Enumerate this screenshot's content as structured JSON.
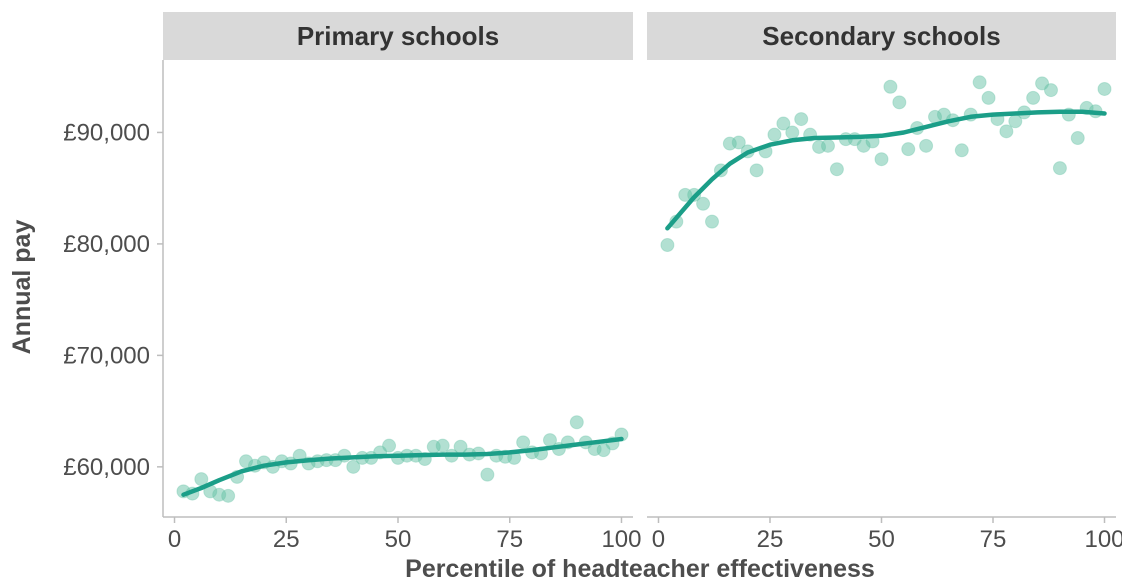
{
  "chart_data": {
    "type": "scatter",
    "xlabel": "Percentile of headteacher effectiveness",
    "ylabel": "Annual pay",
    "xlim": [
      0,
      100
    ],
    "ylim": [
      55500,
      96500
    ],
    "x_ticks": [
      0,
      25,
      50,
      75,
      100
    ],
    "x_tick_labels": [
      "0",
      "25",
      "50",
      "75",
      "100"
    ],
    "y_ticks": [
      60000,
      70000,
      80000,
      90000
    ],
    "y_tick_labels": [
      "£60,000",
      "£70,000",
      "£80,000",
      "£90,000"
    ],
    "grid": false,
    "colors": {
      "points": "#66c2a5",
      "smooth_line": "#1b9e88",
      "strip_bg": "#d9d9d9",
      "axis": "#bdbdbd"
    },
    "panels": [
      {
        "name": "Primary schools",
        "points": [
          [
            2,
            57800
          ],
          [
            4,
            57600
          ],
          [
            6,
            58900
          ],
          [
            8,
            57800
          ],
          [
            10,
            57500
          ],
          [
            12,
            57400
          ],
          [
            14,
            59100
          ],
          [
            16,
            60500
          ],
          [
            18,
            60100
          ],
          [
            20,
            60400
          ],
          [
            22,
            60000
          ],
          [
            24,
            60500
          ],
          [
            26,
            60300
          ],
          [
            28,
            61000
          ],
          [
            30,
            60300
          ],
          [
            32,
            60500
          ],
          [
            34,
            60600
          ],
          [
            36,
            60600
          ],
          [
            38,
            61000
          ],
          [
            40,
            60000
          ],
          [
            42,
            60800
          ],
          [
            44,
            60800
          ],
          [
            46,
            61300
          ],
          [
            48,
            61900
          ],
          [
            50,
            60800
          ],
          [
            52,
            61000
          ],
          [
            54,
            61000
          ],
          [
            56,
            60700
          ],
          [
            58,
            61800
          ],
          [
            60,
            61900
          ],
          [
            62,
            61000
          ],
          [
            64,
            61800
          ],
          [
            66,
            61100
          ],
          [
            68,
            61200
          ],
          [
            70,
            59300
          ],
          [
            72,
            61000
          ],
          [
            74,
            60900
          ],
          [
            76,
            60800
          ],
          [
            78,
            62200
          ],
          [
            80,
            61300
          ],
          [
            82,
            61200
          ],
          [
            84,
            62400
          ],
          [
            86,
            61600
          ],
          [
            88,
            62200
          ],
          [
            90,
            64000
          ],
          [
            92,
            62200
          ],
          [
            94,
            61600
          ],
          [
            96,
            61500
          ],
          [
            98,
            62100
          ],
          [
            100,
            62900
          ]
        ],
        "smooth": [
          [
            2,
            57500
          ],
          [
            6,
            58100
          ],
          [
            10,
            58800
          ],
          [
            15,
            59600
          ],
          [
            20,
            60100
          ],
          [
            25,
            60400
          ],
          [
            30,
            60600
          ],
          [
            35,
            60750
          ],
          [
            40,
            60850
          ],
          [
            45,
            60950
          ],
          [
            50,
            61000
          ],
          [
            55,
            61050
          ],
          [
            60,
            61100
          ],
          [
            65,
            61100
          ],
          [
            70,
            61150
          ],
          [
            75,
            61300
          ],
          [
            80,
            61500
          ],
          [
            85,
            61750
          ],
          [
            90,
            62000
          ],
          [
            95,
            62250
          ],
          [
            100,
            62500
          ]
        ]
      },
      {
        "name": "Secondary schools",
        "points": [
          [
            2,
            79900
          ],
          [
            4,
            82000
          ],
          [
            6,
            84400
          ],
          [
            8,
            84400
          ],
          [
            10,
            83600
          ],
          [
            12,
            82000
          ],
          [
            14,
            86600
          ],
          [
            16,
            89000
          ],
          [
            18,
            89100
          ],
          [
            20,
            88300
          ],
          [
            22,
            86600
          ],
          [
            24,
            88300
          ],
          [
            26,
            89800
          ],
          [
            28,
            90800
          ],
          [
            30,
            90000
          ],
          [
            32,
            91200
          ],
          [
            34,
            89800
          ],
          [
            36,
            88700
          ],
          [
            38,
            88800
          ],
          [
            40,
            86700
          ],
          [
            42,
            89400
          ],
          [
            44,
            89400
          ],
          [
            46,
            88800
          ],
          [
            48,
            89200
          ],
          [
            50,
            87600
          ],
          [
            52,
            94100
          ],
          [
            54,
            92700
          ],
          [
            56,
            88500
          ],
          [
            58,
            90400
          ],
          [
            60,
            88800
          ],
          [
            62,
            91400
          ],
          [
            64,
            91600
          ],
          [
            66,
            91100
          ],
          [
            68,
            88400
          ],
          [
            70,
            91600
          ],
          [
            72,
            94500
          ],
          [
            74,
            93100
          ],
          [
            76,
            91200
          ],
          [
            78,
            90100
          ],
          [
            80,
            91000
          ],
          [
            82,
            91800
          ],
          [
            84,
            93100
          ],
          [
            86,
            94400
          ],
          [
            88,
            93800
          ],
          [
            90,
            86800
          ],
          [
            92,
            91600
          ],
          [
            94,
            89500
          ],
          [
            96,
            92200
          ],
          [
            98,
            91900
          ],
          [
            100,
            93900
          ]
        ],
        "smooth": [
          [
            2,
            81400
          ],
          [
            5,
            82800
          ],
          [
            8,
            84200
          ],
          [
            12,
            85800
          ],
          [
            16,
            87200
          ],
          [
            20,
            88200
          ],
          [
            25,
            88900
          ],
          [
            30,
            89300
          ],
          [
            35,
            89500
          ],
          [
            40,
            89550
          ],
          [
            45,
            89600
          ],
          [
            50,
            89700
          ],
          [
            55,
            90000
          ],
          [
            60,
            90500
          ],
          [
            65,
            91000
          ],
          [
            70,
            91400
          ],
          [
            75,
            91600
          ],
          [
            80,
            91700
          ],
          [
            85,
            91800
          ],
          [
            90,
            91850
          ],
          [
            95,
            91850
          ],
          [
            100,
            91700
          ]
        ]
      }
    ]
  }
}
